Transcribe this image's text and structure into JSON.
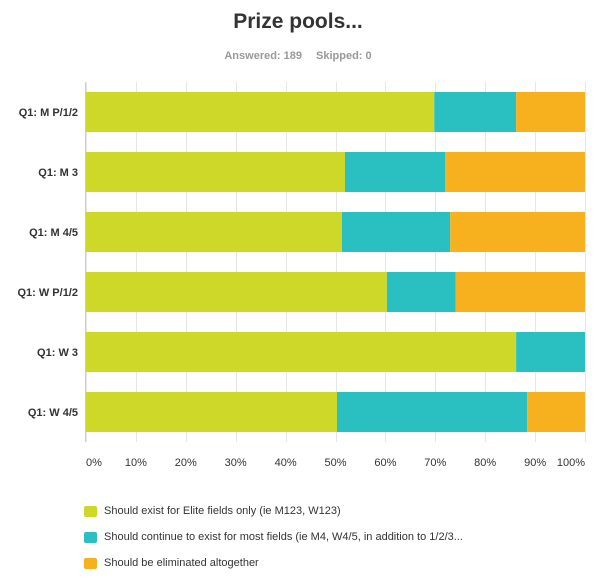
{
  "header": {
    "title": "Prize pools...",
    "answered": "Answered: 189",
    "skipped": "Skipped: 0"
  },
  "colors": {
    "series_0": "#cdd829",
    "series_1": "#2abfc0",
    "series_2": "#f7b01e",
    "gridline": "#e6e6e6",
    "axis": "#cccccc"
  },
  "chart_data": {
    "type": "bar",
    "orientation": "horizontal",
    "stacked": true,
    "title": "Prize pools...",
    "categories": [
      "Q1: M P/1/2",
      "Q1: M 3",
      "Q1: M 4/5",
      "Q1: W P/1/2",
      "Q1: W 3",
      "Q1: W 4/5"
    ],
    "series": [
      {
        "name": "Should exist for Elite fields only (ie M123, W123)",
        "values": [
          69.8,
          51.9,
          51.3,
          60.3,
          86.2,
          50.3
        ]
      },
      {
        "name": "Should continue to exist for most fields (ie M4, W4/5, in addition to 1/2/3...",
        "values": [
          16.4,
          20.1,
          21.7,
          13.8,
          13.8,
          38.1
        ]
      },
      {
        "name": "Should be eliminated altogether",
        "values": [
          13.8,
          28.0,
          27.0,
          25.9,
          0,
          11.6
        ]
      }
    ],
    "xlim": [
      0,
      100
    ],
    "x_ticks": [
      "0%",
      "10%",
      "20%",
      "30%",
      "40%",
      "50%",
      "60%",
      "70%",
      "80%",
      "90%",
      "100%"
    ],
    "grid": true,
    "legend": "bottom-left"
  }
}
